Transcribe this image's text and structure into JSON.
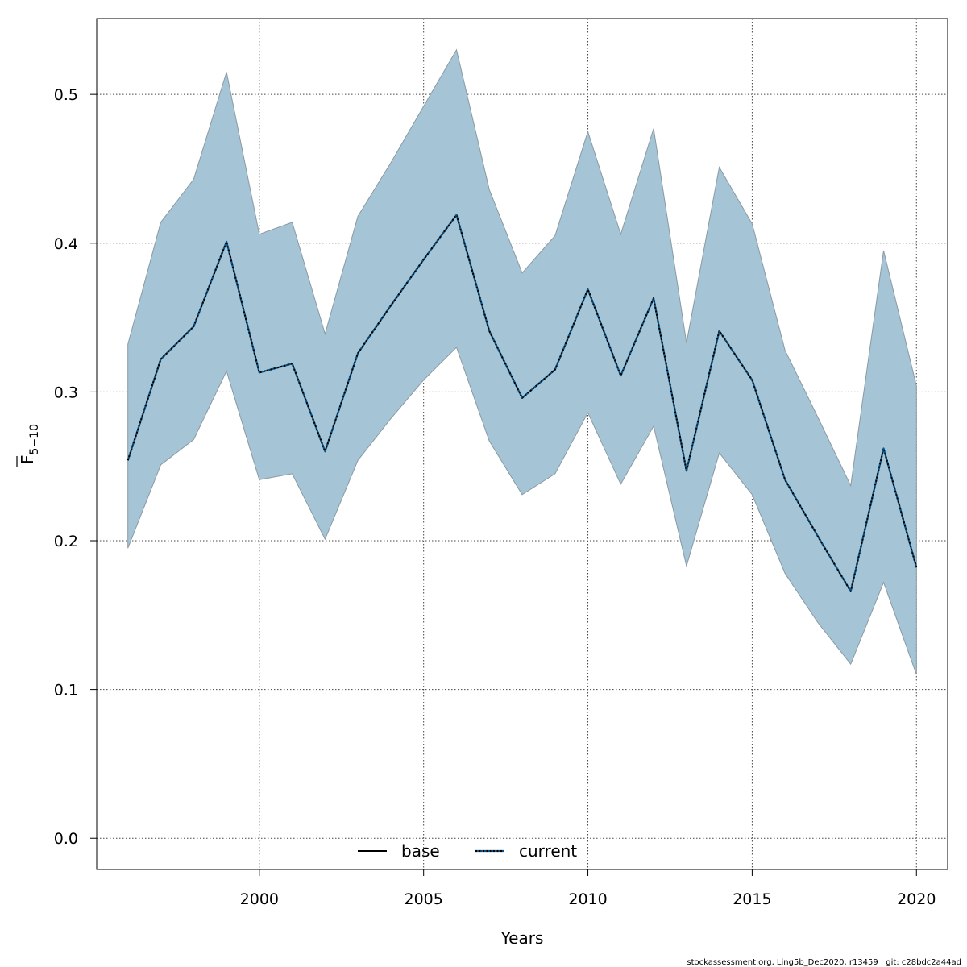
{
  "chart_data": {
    "type": "line",
    "xlabel": "Years",
    "ylabel": {
      "main": "F",
      "subscript": "5−10"
    },
    "xlim": [
      1995.05,
      2020.95
    ],
    "ylim": [
      -0.021,
      0.551
    ],
    "x_ticks": [
      2000,
      2005,
      2010,
      2015,
      2020
    ],
    "y_ticks": [
      0.0,
      0.1,
      0.2,
      0.3,
      0.4,
      0.5
    ],
    "x_tick_labels": [
      "2000",
      "2005",
      "2010",
      "2015",
      "2020"
    ],
    "y_tick_labels": [
      "0.0",
      "0.1",
      "0.2",
      "0.3",
      "0.4",
      "0.5"
    ],
    "grid": true,
    "x": [
      1996,
      1997,
      1998,
      1999,
      2000,
      2001,
      2002,
      2003,
      2004,
      2005,
      2006,
      2007,
      2008,
      2009,
      2010,
      2011,
      2012,
      2013,
      2014,
      2015,
      2016,
      2017,
      2018,
      2019,
      2020
    ],
    "series": [
      {
        "name": "base",
        "style": "solid",
        "color": "#000000",
        "values": [
          0.254,
          0.322,
          0.344,
          0.401,
          0.313,
          0.319,
          0.26,
          0.326,
          0.358,
          0.389,
          0.419,
          0.341,
          0.296,
          0.315,
          0.369,
          0.311,
          0.363,
          0.247,
          0.341,
          0.308,
          0.241,
          0.203,
          0.166,
          0.262,
          0.182
        ]
      },
      {
        "name": "current",
        "style": "dotted",
        "color": "#00528a",
        "values": [
          0.254,
          0.322,
          0.344,
          0.401,
          0.313,
          0.319,
          0.26,
          0.326,
          0.358,
          0.389,
          0.419,
          0.341,
          0.296,
          0.315,
          0.369,
          0.311,
          0.363,
          0.247,
          0.341,
          0.308,
          0.241,
          0.203,
          0.166,
          0.262,
          0.182
        ]
      }
    ],
    "band": {
      "color": "#a5c4d5",
      "edge_color": "#8a9aa3",
      "lower": [
        0.195,
        0.251,
        0.268,
        0.314,
        0.241,
        0.245,
        0.201,
        0.254,
        0.282,
        0.308,
        0.33,
        0.267,
        0.231,
        0.245,
        0.286,
        0.238,
        0.277,
        0.183,
        0.259,
        0.231,
        0.178,
        0.145,
        0.117,
        0.172,
        0.11
      ],
      "upper": [
        0.332,
        0.414,
        0.443,
        0.515,
        0.406,
        0.414,
        0.339,
        0.418,
        0.454,
        0.492,
        0.53,
        0.436,
        0.38,
        0.405,
        0.475,
        0.406,
        0.477,
        0.333,
        0.451,
        0.413,
        0.328,
        0.283,
        0.237,
        0.395,
        0.304
      ]
    },
    "legend": {
      "placement": "bottom-center",
      "entries": [
        "base",
        "current"
      ]
    }
  },
  "footer": "stockassessment.org, Ling5b_Dec2020, r13459 , git: c28bdc2a44ad"
}
